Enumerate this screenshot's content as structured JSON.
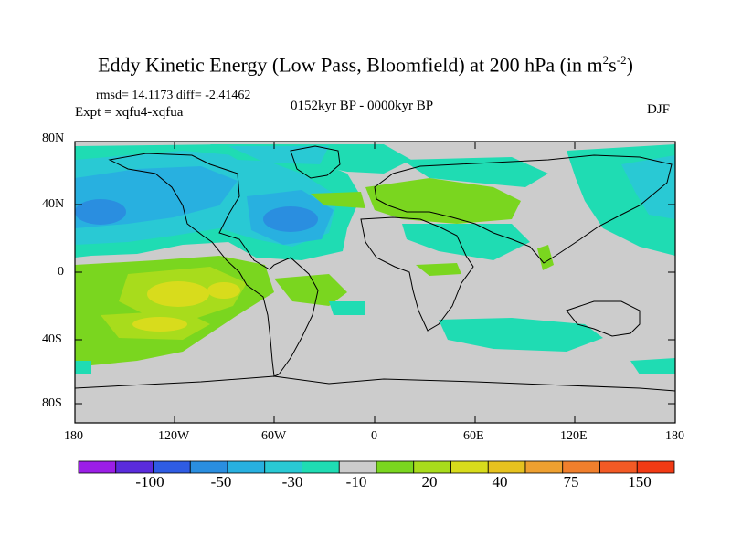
{
  "title": {
    "main": "Eddy Kinetic Energy (Low Pass, Bloomfield) at 200 hPa (in m",
    "sup1": "2",
    "mid": "s",
    "sup2": "-2",
    "end": ")"
  },
  "stats": "rmsd= 14.1173 diff= -2.41462",
  "period": "0152kyr BP - 0000kyr BP",
  "expt": "Expt = xqfu4-xqfua",
  "season": "DJF",
  "lat_ticks": [
    "80N",
    "40N",
    "0",
    "40S",
    "80S"
  ],
  "lon_ticks": [
    "180",
    "120W",
    "60W",
    "0",
    "60E",
    "120E",
    "180"
  ],
  "colorbar": {
    "colors": [
      "#9b1ee6",
      "#5a2bdc",
      "#2f5ce3",
      "#2a8ee0",
      "#28b0e0",
      "#29c9d4",
      "#1fdcb3",
      "#cccccc",
      "#7ad61f",
      "#a8dc1c",
      "#d8dc1c",
      "#e6c21f",
      "#eea030",
      "#f07f2c",
      "#f35a25",
      "#f23a14"
    ],
    "labels": [
      "-100",
      "-50",
      "-30",
      "-10",
      "20",
      "40",
      "75",
      "150"
    ]
  },
  "chart_data": {
    "type": "heatmap",
    "title": "Eddy Kinetic Energy (Low Pass, Bloomfield) at 200 hPa (in m^2s^-2)",
    "projection": "cylindrical-equidistant",
    "lon_range": [
      -180,
      180
    ],
    "lat_range": [
      -90,
      90
    ],
    "colorbar_levels": [
      -100,
      -50,
      -30,
      -10,
      20,
      40,
      75,
      150
    ]
  }
}
